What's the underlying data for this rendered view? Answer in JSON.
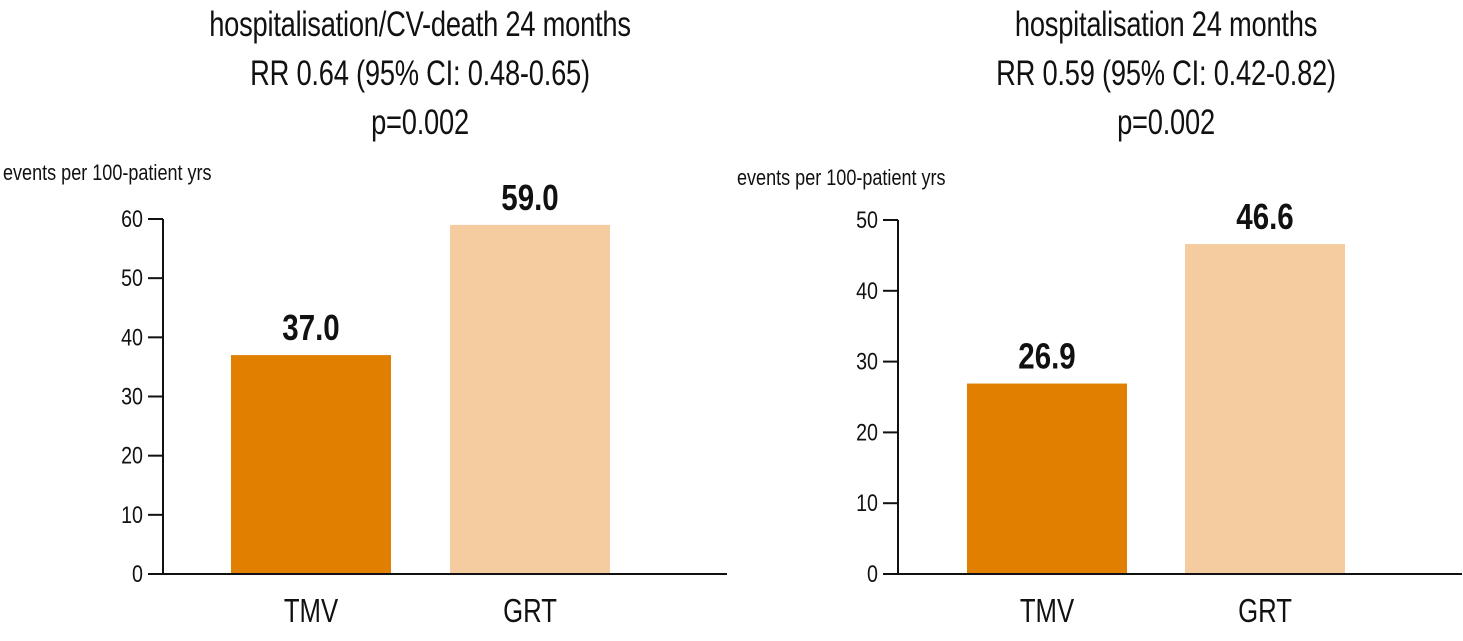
{
  "chart_data": [
    {
      "type": "bar",
      "title_lines": [
        "hospitalisation/CV-death 24 months",
        "RR 0.64 (95% CI: 0.48-0.65)",
        "p=0.002"
      ],
      "ylabel": "events per 100-patient yrs",
      "xlabel": "",
      "categories": [
        "TMV",
        "GRT"
      ],
      "values": [
        37.0,
        59.0
      ],
      "value_labels": [
        "37.0",
        "59.0"
      ],
      "colors": [
        "#e07f00",
        "#f4cca0"
      ],
      "ylim": [
        0,
        60
      ],
      "yticks": [
        0,
        10,
        20,
        30,
        40,
        50,
        60
      ],
      "grid": false,
      "legend": "none"
    },
    {
      "type": "bar",
      "title_lines": [
        "hospitalisation 24 months",
        "RR 0.59 (95% CI: 0.42-0.82)",
        "p=0.002"
      ],
      "ylabel": "events per 100-patient yrs",
      "xlabel": "",
      "categories": [
        "TMV",
        "GRT"
      ],
      "values": [
        26.9,
        46.6
      ],
      "value_labels": [
        "26.9",
        "46.6"
      ],
      "colors": [
        "#e07f00",
        "#f4cca0"
      ],
      "ylim": [
        0,
        50
      ],
      "yticks": [
        0,
        10,
        20,
        30,
        40,
        50
      ],
      "grid": false,
      "legend": "none"
    }
  ]
}
